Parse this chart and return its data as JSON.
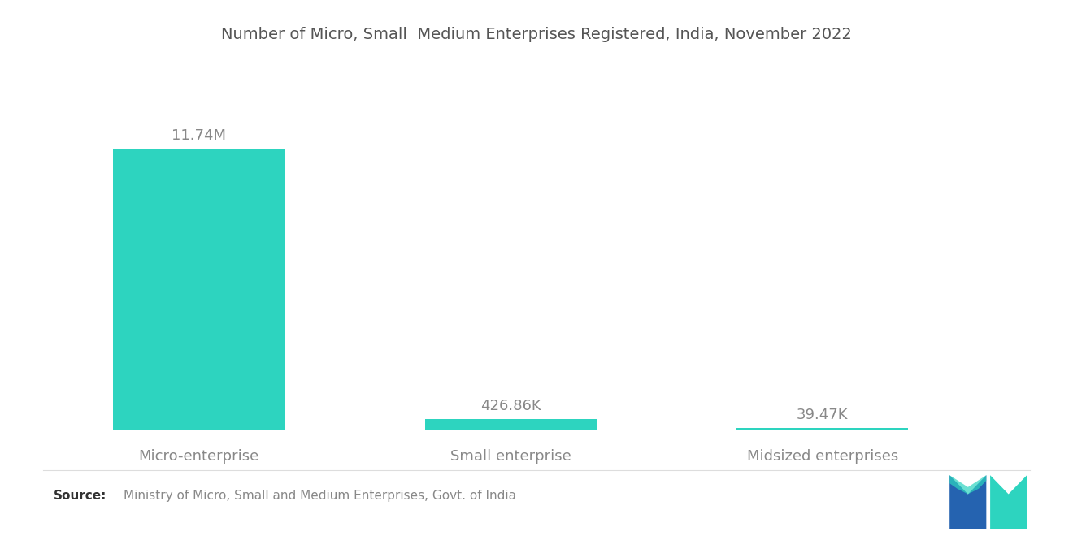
{
  "title": "Number of Micro, Small  Medium Enterprises Registered, India, November 2022",
  "categories": [
    "Micro-enterprise",
    "Small enterprise",
    "Midsized enterprises"
  ],
  "values": [
    11740000,
    426860,
    39470
  ],
  "labels": [
    "11.74M",
    "426.86K",
    "39.47K"
  ],
  "bar_color": "#2DD4BF",
  "background_color": "#ffffff",
  "title_fontsize": 14,
  "label_fontsize": 13,
  "cat_fontsize": 13,
  "source_text": "Ministry of Micro, Small and Medium Enterprises, Govt. of India",
  "source_label": "Source:",
  "text_color": "#888888",
  "title_color": "#555555",
  "source_bold_color": "#333333"
}
